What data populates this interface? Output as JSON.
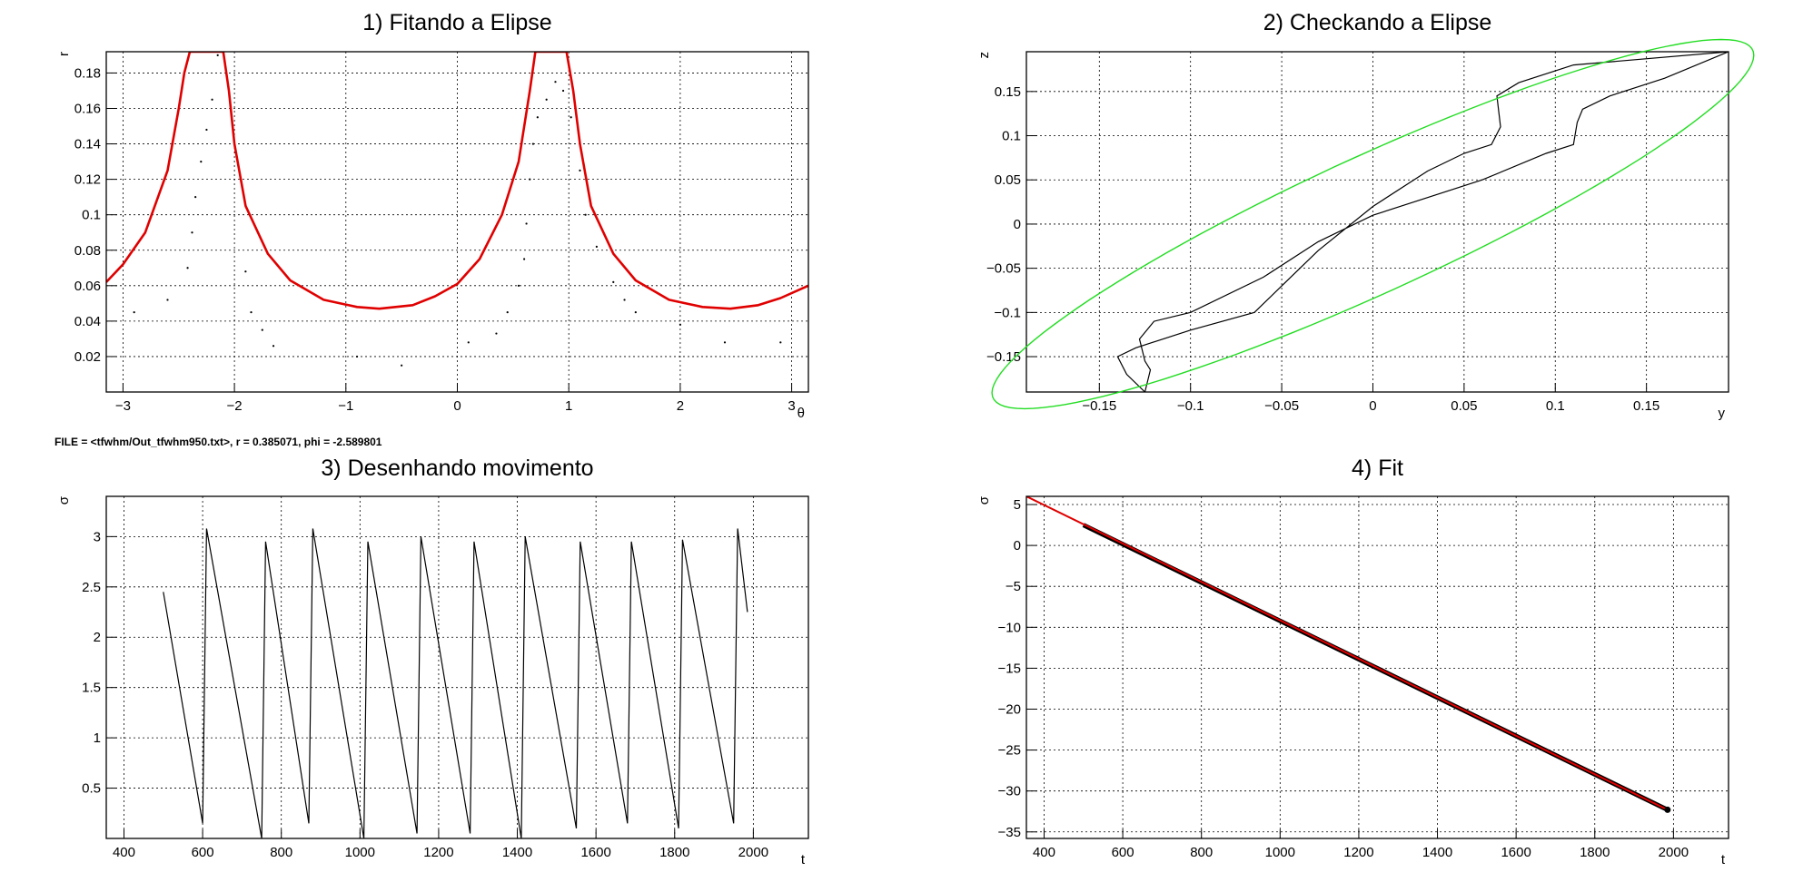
{
  "file_info": "FILE = <tfwhm/Out_tfwhm950.txt>, r = 0.385071, phi = -2.589801",
  "chart_data": [
    {
      "id": "p1",
      "type": "scatter",
      "title": "1) Fitando a Elipse",
      "xlabel": "θ",
      "ylabel": "r",
      "xlim": [
        -3.15,
        3.15
      ],
      "ylim": [
        0.0,
        0.192
      ],
      "grid": true,
      "xticks": [
        -3,
        -2,
        -1,
        0,
        1,
        2,
        3
      ],
      "xtick_labels": [
        "−3",
        "−2",
        "−1",
        "0",
        "1",
        "2",
        "3"
      ],
      "yticks": [
        0.02,
        0.04,
        0.06,
        0.08,
        0.1,
        0.12,
        0.14,
        0.16,
        0.18
      ],
      "ytick_labels": [
        "0.02",
        "0.04",
        "0.06",
        "0.08",
        "0.1",
        "0.12",
        "0.14",
        "0.16",
        "0.18"
      ],
      "fit_color": "#e00000",
      "fit_curve": {
        "x": [
          -3.15,
          -3.0,
          -2.8,
          -2.6,
          -2.5,
          -2.45,
          -2.4,
          -2.1,
          -2.05,
          -2.0,
          -1.9,
          -1.7,
          -1.5,
          -1.2,
          -0.9,
          -0.7,
          -0.4,
          -0.2,
          0.0,
          0.2,
          0.4,
          0.55,
          0.65,
          0.7,
          0.98,
          1.04,
          1.1,
          1.2,
          1.4,
          1.6,
          1.9,
          2.2,
          2.45,
          2.7,
          2.9,
          3.15
        ],
        "y": [
          0.062,
          0.072,
          0.09,
          0.125,
          0.16,
          0.18,
          0.192,
          0.192,
          0.17,
          0.14,
          0.105,
          0.078,
          0.063,
          0.052,
          0.048,
          0.047,
          0.049,
          0.054,
          0.061,
          0.075,
          0.1,
          0.13,
          0.17,
          0.192,
          0.192,
          0.17,
          0.14,
          0.105,
          0.078,
          0.063,
          0.052,
          0.048,
          0.047,
          0.049,
          0.053,
          0.06
        ]
      },
      "points": {
        "x": [
          -2.9,
          -2.6,
          -2.42,
          -2.38,
          -2.35,
          -2.3,
          -2.25,
          -2.2,
          -2.15,
          -1.9,
          -1.85,
          -1.75,
          -1.65,
          -0.5,
          -0.9,
          0.1,
          0.35,
          0.45,
          0.55,
          0.6,
          0.62,
          0.65,
          0.68,
          0.72,
          0.8,
          0.88,
          0.95,
          1.02,
          1.1,
          1.15,
          1.25,
          1.4,
          1.5,
          1.6,
          2.0,
          2.4,
          2.9
        ],
        "y": [
          0.045,
          0.052,
          0.07,
          0.09,
          0.11,
          0.13,
          0.148,
          0.165,
          0.19,
          0.068,
          0.045,
          0.035,
          0.026,
          0.015,
          0.02,
          0.028,
          0.033,
          0.045,
          0.06,
          0.075,
          0.095,
          0.12,
          0.14,
          0.155,
          0.165,
          0.175,
          0.17,
          0.155,
          0.125,
          0.1,
          0.082,
          0.062,
          0.052,
          0.045,
          0.038,
          0.028,
          0.028
        ]
      }
    },
    {
      "id": "p2",
      "type": "line",
      "title": "2) Checkando a Elipse",
      "xlabel": "y",
      "ylabel": "z",
      "xlim": [
        -0.19,
        0.195
      ],
      "ylim": [
        -0.19,
        0.195
      ],
      "grid": true,
      "xticks": [
        -0.15,
        -0.1,
        -0.05,
        0,
        0.05,
        0.1,
        0.15
      ],
      "xtick_labels": [
        "−0.15",
        "−0.1",
        "−0.05",
        "0",
        "0.05",
        "0.1",
        "0.15"
      ],
      "yticks": [
        -0.15,
        -0.1,
        -0.05,
        0,
        0.05,
        0.1,
        0.15
      ],
      "ytick_labels": [
        "−0.15",
        "−0.1",
        "−0.05",
        "0",
        "0.05",
        "0.1",
        "0.15"
      ],
      "ellipse_color": "#22dd22",
      "ellipse": {
        "center": [
          0.0,
          0.0
        ],
        "semi_major": 0.289,
        "semi_minor": 0.061,
        "angle_deg": 45
      },
      "trajectory": {
        "x": [
          0.195,
          0.16,
          0.13,
          0.115,
          0.112,
          0.11,
          0.095,
          0.06,
          0.03,
          0.0,
          -0.03,
          -0.06,
          -0.1,
          -0.11,
          -0.12,
          -0.128,
          -0.125,
          -0.122,
          -0.125,
          -0.135,
          -0.14,
          -0.13,
          -0.1,
          -0.065,
          -0.05,
          -0.03,
          0.0,
          0.03,
          0.05,
          0.065,
          0.07,
          0.068,
          0.08,
          0.11,
          0.195
        ],
        "y": [
          0.195,
          0.165,
          0.145,
          0.13,
          0.115,
          0.09,
          0.08,
          0.05,
          0.03,
          0.01,
          -0.02,
          -0.06,
          -0.1,
          -0.105,
          -0.11,
          -0.13,
          -0.155,
          -0.165,
          -0.19,
          -0.17,
          -0.15,
          -0.14,
          -0.12,
          -0.1,
          -0.07,
          -0.03,
          0.02,
          0.06,
          0.08,
          0.09,
          0.11,
          0.145,
          0.16,
          0.18,
          0.195
        ]
      }
    },
    {
      "id": "p3",
      "type": "line",
      "title": "3) Desenhando movimento",
      "xlabel": "t",
      "ylabel": "σ",
      "xlim": [
        355,
        2140
      ],
      "ylim": [
        0.0,
        3.4
      ],
      "grid": true,
      "xticks": [
        400,
        600,
        800,
        1000,
        1200,
        1400,
        1600,
        1800,
        2000
      ],
      "xtick_labels": [
        "400",
        "600",
        "800",
        "1000",
        "1200",
        "1400",
        "1600",
        "1800",
        "2000"
      ],
      "yticks": [
        0.5,
        1,
        1.5,
        2,
        2.5,
        3
      ],
      "ytick_labels": [
        "0.5",
        "1",
        "1.5",
        "2",
        "2.5",
        "3"
      ],
      "series": {
        "x": [
          500,
          600,
          610,
          750,
          760,
          870,
          880,
          1010,
          1020,
          1145,
          1155,
          1280,
          1290,
          1410,
          1420,
          1550,
          1560,
          1680,
          1690,
          1810,
          1820,
          1950,
          1960,
          1985
        ],
        "y": [
          2.45,
          0.15,
          3.08,
          0.0,
          2.95,
          0.15,
          3.08,
          0.0,
          2.95,
          0.05,
          3.0,
          0.05,
          2.95,
          0.0,
          3.0,
          0.1,
          2.95,
          0.15,
          2.95,
          0.1,
          2.97,
          0.15,
          3.08,
          2.25
        ]
      }
    },
    {
      "id": "p4",
      "type": "scatter",
      "title": "4) Fit",
      "xlabel": "t",
      "ylabel": "σ",
      "xlim": [
        355,
        2140
      ],
      "ylim": [
        -35.8,
        6.0
      ],
      "grid": true,
      "xticks": [
        400,
        600,
        800,
        1000,
        1200,
        1400,
        1600,
        1800,
        2000
      ],
      "xtick_labels": [
        "400",
        "600",
        "800",
        "1000",
        "1200",
        "1400",
        "1600",
        "1800",
        "2000"
      ],
      "yticks": [
        -35,
        -30,
        -25,
        -20,
        -15,
        -10,
        -5,
        0,
        5
      ],
      "ytick_labels": [
        "−35",
        "−30",
        "−25",
        "−20",
        "−15",
        "−10",
        "−5",
        "0",
        "5"
      ],
      "fit_color": "#e00000",
      "fit_line": {
        "x": [
          355,
          1985
        ],
        "y": [
          6.0,
          -32.3
        ]
      },
      "data": {
        "x_start": 500,
        "x_end": 1985,
        "y_start": 2.5,
        "y_end": -32.3
      }
    }
  ]
}
